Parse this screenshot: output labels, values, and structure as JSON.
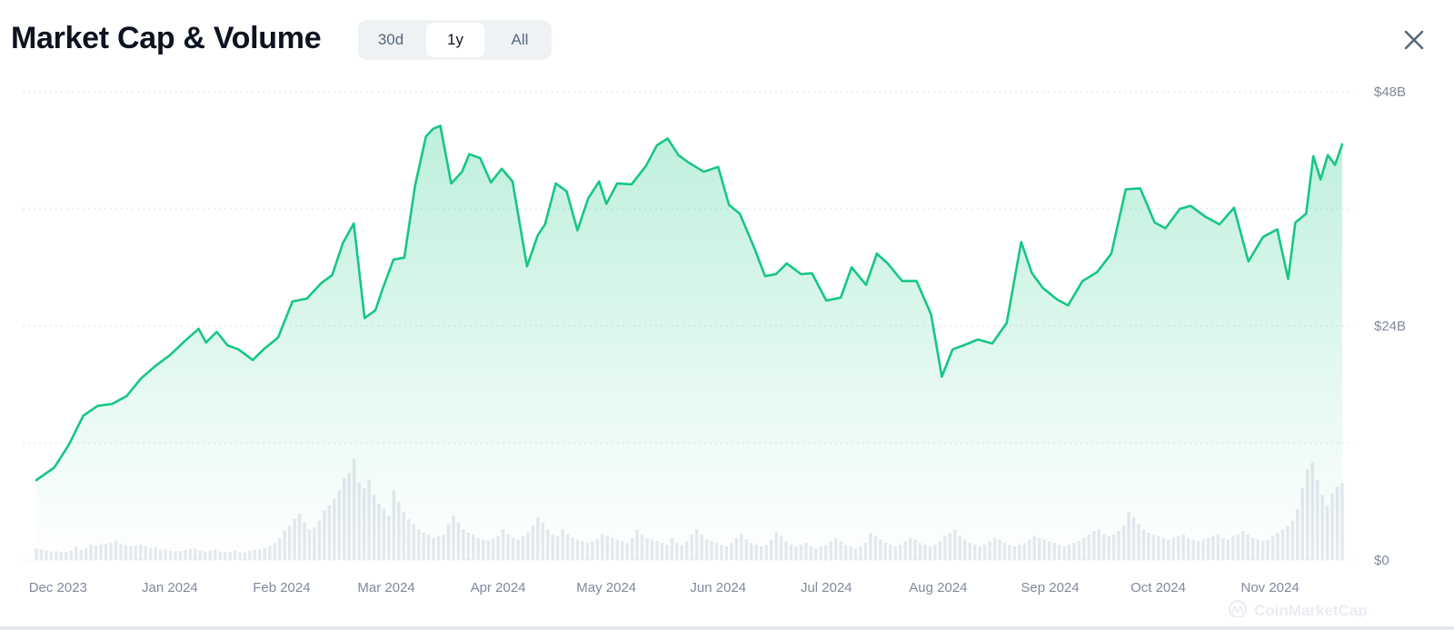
{
  "header": {
    "title": "Market Cap & Volume",
    "ranges": [
      "30d",
      "1y",
      "All"
    ],
    "active_range": "1y"
  },
  "colors": {
    "line": "#16c784",
    "area_top": "#16c784",
    "volume": "#e6e8ef",
    "grid": "#dde1e6",
    "axis_text": "#808a9d"
  },
  "icons": {
    "close": "close-icon",
    "watermark": "coinmarketcap-logo-icon"
  },
  "watermark": "CoinMarketCap",
  "chart_data": {
    "type": "area",
    "title": "Market Cap & Volume",
    "x_ticks": [
      "Dec 2023",
      "Jan 2024",
      "Feb 2024",
      "Mar 2024",
      "Apr 2024",
      "May 2024",
      "Jun 2024",
      "Jul 2024",
      "Aug 2024",
      "Sep 2024",
      "Oct 2024",
      "Nov 2024"
    ],
    "y_ticks": [
      "$48B",
      "$24B",
      "$0"
    ],
    "ylim": [
      0,
      48
    ],
    "grid": true,
    "series": [
      {
        "type": "area",
        "x": [
          "2023-11-25",
          "2023-11-30",
          "2023-12-04",
          "2023-12-08",
          "2023-12-12",
          "2023-12-16",
          "2023-12-20",
          "2023-12-24",
          "2023-12-28",
          "2024-01-01",
          "2024-01-05",
          "2024-01-09",
          "2024-01-11",
          "2024-01-14",
          "2024-01-17",
          "2024-01-20",
          "2024-01-24",
          "2024-01-27",
          "2024-01-31",
          "2024-02-04",
          "2024-02-08",
          "2024-02-12",
          "2024-02-15",
          "2024-02-18",
          "2024-02-21",
          "2024-02-24",
          "2024-02-27",
          "2024-02-29",
          "2024-03-03",
          "2024-03-06",
          "2024-03-09",
          "2024-03-12",
          "2024-03-14",
          "2024-03-16",
          "2024-03-19",
          "2024-03-22",
          "2024-03-24",
          "2024-03-27",
          "2024-03-30",
          "2024-04-02",
          "2024-04-05",
          "2024-04-09",
          "2024-04-12",
          "2024-04-14",
          "2024-04-17",
          "2024-04-20",
          "2024-04-23",
          "2024-04-26",
          "2024-04-29",
          "2024-05-01",
          "2024-05-04",
          "2024-05-08",
          "2024-05-12",
          "2024-05-15",
          "2024-05-18",
          "2024-05-21",
          "2024-05-24",
          "2024-05-28",
          "2024-06-01",
          "2024-06-04",
          "2024-06-07",
          "2024-06-11",
          "2024-06-14",
          "2024-06-17",
          "2024-06-20",
          "2024-06-24",
          "2024-06-27",
          "2024-07-01",
          "2024-07-05",
          "2024-07-08",
          "2024-07-12",
          "2024-07-15",
          "2024-07-18",
          "2024-07-22",
          "2024-07-26",
          "2024-07-30",
          "2024-08-02",
          "2024-08-05",
          "2024-08-08",
          "2024-08-12",
          "2024-08-16",
          "2024-08-20",
          "2024-08-24",
          "2024-08-27",
          "2024-08-30",
          "2024-09-03",
          "2024-09-06",
          "2024-09-10",
          "2024-09-14",
          "2024-09-18",
          "2024-09-22",
          "2024-09-26",
          "2024-09-30",
          "2024-10-03",
          "2024-10-07",
          "2024-10-10",
          "2024-10-14",
          "2024-10-18",
          "2024-10-22",
          "2024-10-26",
          "2024-10-30",
          "2024-11-03",
          "2024-11-06",
          "2024-11-08",
          "2024-11-11",
          "2024-11-13",
          "2024-11-15",
          "2024-11-17",
          "2024-11-19",
          "2024-11-21"
        ],
        "values": [
          8.2,
          9.5,
          11.8,
          14.8,
          15.8,
          16.0,
          16.8,
          18.6,
          19.9,
          21.0,
          22.4,
          23.7,
          22.3,
          23.4,
          22.0,
          21.6,
          20.5,
          21.6,
          22.8,
          26.5,
          26.8,
          28.4,
          29.2,
          32.5,
          34.5,
          24.8,
          25.6,
          27.8,
          30.8,
          31.0,
          38.4,
          43.4,
          44.2,
          44.5,
          38.6,
          39.8,
          41.6,
          41.2,
          38.7,
          40.1,
          38.8,
          30.1,
          33.3,
          34.4,
          38.6,
          37.8,
          33.8,
          37.1,
          38.8,
          36.5,
          38.6,
          38.5,
          40.4,
          42.5,
          43.2,
          41.5,
          40.7,
          39.8,
          40.3,
          36.4,
          35.5,
          32.0,
          29.1,
          29.3,
          30.4,
          29.3,
          29.4,
          26.6,
          26.9,
          30.0,
          28.2,
          31.4,
          30.4,
          28.6,
          28.6,
          25.2,
          18.8,
          21.6,
          22.0,
          22.6,
          22.2,
          24.3,
          32.6,
          29.4,
          27.9,
          26.7,
          26.1,
          28.6,
          29.5,
          31.4,
          38.0,
          38.1,
          34.6,
          34.0,
          36.0,
          36.3,
          35.2,
          34.4,
          36.1,
          30.6,
          33.1,
          33.9,
          28.8,
          34.6,
          35.5,
          41.4,
          39.0,
          41.5,
          40.5,
          42.6
        ]
      },
      {
        "type": "bar",
        "name": "Volume",
        "values": [
          1.35,
          1.25,
          1.15,
          1.0,
          1.05,
          0.9,
          0.95,
          1.1,
          1.6,
          1.2,
          1.4,
          1.8,
          1.7,
          1.85,
          1.9,
          2.0,
          2.3,
          1.9,
          1.8,
          1.6,
          1.7,
          1.8,
          1.6,
          1.4,
          1.5,
          1.2,
          1.3,
          1.1,
          1.0,
          1.05,
          1.2,
          1.3,
          1.4,
          1.1,
          1.0,
          1.1,
          1.2,
          1.0,
          0.95,
          1.0,
          1.1,
          0.9,
          1.0,
          1.1,
          1.2,
          1.3,
          1.4,
          1.6,
          2.0,
          2.6,
          3.5,
          4.0,
          4.8,
          5.4,
          4.4,
          3.6,
          3.8,
          4.6,
          5.8,
          6.4,
          7.2,
          8.2,
          9.6,
          10.2,
          11.8,
          9.0,
          8.4,
          9.4,
          7.6,
          6.6,
          6.0,
          5.2,
          8.2,
          6.8,
          5.6,
          4.8,
          4.2,
          3.6,
          3.2,
          3.0,
          2.6,
          2.8,
          3.0,
          4.2,
          5.2,
          4.4,
          3.6,
          3.2,
          3.0,
          2.6,
          2.4,
          2.3,
          2.5,
          2.8,
          3.6,
          3.0,
          2.6,
          2.4,
          2.8,
          3.2,
          4.0,
          5.0,
          4.4,
          3.6,
          3.0,
          2.8,
          3.6,
          3.0,
          2.6,
          2.4,
          2.2,
          2.0,
          2.2,
          2.5,
          3.0,
          2.8,
          2.6,
          2.4,
          2.2,
          2.0,
          2.6,
          3.6,
          3.0,
          2.6,
          2.4,
          2.2,
          2.0,
          1.8,
          2.6,
          2.0,
          1.8,
          2.2,
          3.0,
          3.6,
          3.0,
          2.4,
          2.2,
          2.0,
          1.8,
          1.6,
          2.0,
          2.6,
          3.0,
          2.4,
          2.0,
          1.8,
          1.6,
          1.8,
          2.4,
          3.2,
          2.8,
          2.2,
          1.8,
          1.6,
          1.8,
          2.0,
          1.6,
          1.4,
          1.6,
          1.8,
          2.2,
          2.6,
          2.2,
          1.8,
          1.6,
          1.4,
          1.6,
          2.0,
          3.2,
          2.8,
          2.4,
          2.0,
          1.8,
          1.6,
          1.8,
          2.2,
          2.6,
          2.4,
          2.0,
          1.8,
          1.6,
          1.8,
          2.2,
          2.8,
          3.2,
          3.6,
          2.8,
          2.4,
          2.0,
          1.8,
          1.6,
          1.8,
          2.2,
          2.6,
          2.4,
          2.0,
          1.8,
          1.6,
          1.8,
          2.0,
          2.4,
          2.8,
          2.6,
          2.4,
          2.2,
          2.0,
          1.8,
          1.6,
          1.8,
          2.0,
          2.2,
          2.6,
          3.0,
          3.4,
          3.6,
          3.0,
          2.8,
          3.0,
          3.4,
          4.0,
          5.6,
          5.0,
          4.2,
          3.6,
          3.2,
          3.0,
          2.8,
          2.6,
          2.4,
          2.6,
          2.8,
          3.0,
          2.6,
          2.4,
          2.2,
          2.4,
          2.6,
          2.8,
          3.0,
          2.6,
          2.4,
          2.8,
          3.0,
          3.4,
          3.0,
          2.6,
          2.4,
          2.2,
          2.4,
          2.8,
          3.2,
          3.6,
          4.0,
          4.6,
          6.0,
          8.4,
          10.6,
          11.4,
          9.4,
          7.6,
          6.4,
          7.8,
          8.6,
          9.0
        ]
      }
    ]
  }
}
